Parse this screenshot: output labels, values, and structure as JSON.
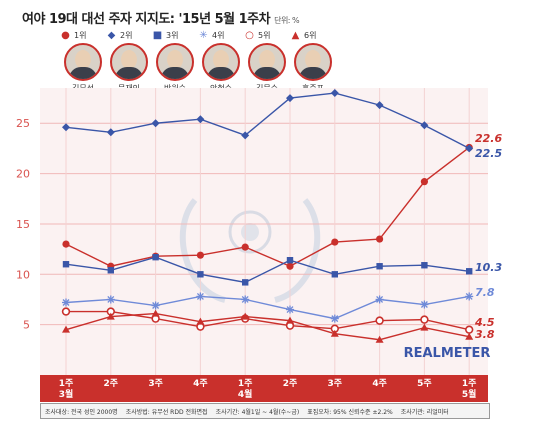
{
  "header": {
    "title": "여야 19대 대선 주자 지지도: '15년 5월 1주차",
    "unit": "단위: %"
  },
  "legend": [
    {
      "rank": "1위",
      "name": "김무성",
      "icon": "filled-circle-icon",
      "color": "#c9302c"
    },
    {
      "rank": "2위",
      "name": "문재인",
      "icon": "diamond-icon",
      "color": "#3a56a8"
    },
    {
      "rank": "3위",
      "name": "박원순",
      "icon": "square-icon",
      "color": "#3a56a8"
    },
    {
      "rank": "4위",
      "name": "안철수",
      "icon": "asterisk-icon",
      "color": "#6f8ad8"
    },
    {
      "rank": "5위",
      "name": "김문수",
      "icon": "open-circle-icon",
      "color": "#c9302c"
    },
    {
      "rank": "6위",
      "name": "홍준표",
      "icon": "triangle-icon",
      "color": "#c9302c"
    }
  ],
  "watermark": "REALMETER",
  "footer": {
    "items": [
      "조사대상: 전국 성인 2000명",
      "조사방법: 유무선 RDD 전화면접",
      "조사기간: 4월1일 ~ 4월(수~금)",
      "표집오차: 95% 신뢰수준 ±2.2%",
      "조사기관: 리얼미터"
    ]
  },
  "chart_data": {
    "type": "line",
    "categories": [
      "1주 3월",
      "2주",
      "3주",
      "4주",
      "1주 4월",
      "2주",
      "3주",
      "4주",
      "5주",
      "1주 5월"
    ],
    "category_lines": [
      [
        "1주",
        "3월"
      ],
      [
        "2주"
      ],
      [
        "3주"
      ],
      [
        "4주"
      ],
      [
        "1주",
        "4월"
      ],
      [
        "2주"
      ],
      [
        "3주"
      ],
      [
        "4주"
      ],
      [
        "5주"
      ],
      [
        "1주",
        "5월"
      ]
    ],
    "ylim": [
      0,
      28.5
    ],
    "yticks": [
      5,
      10,
      15,
      20,
      25
    ],
    "grid": true,
    "series": [
      {
        "name": "김무성",
        "marker": "filled-circle",
        "color": "#c9302c",
        "values": [
          13.0,
          10.8,
          11.8,
          11.9,
          12.7,
          10.8,
          13.2,
          13.5,
          19.2,
          22.6
        ],
        "end_label": "22.6"
      },
      {
        "name": "문재인",
        "marker": "diamond",
        "color": "#3a56a8",
        "values": [
          24.6,
          24.1,
          25.0,
          25.4,
          23.8,
          27.5,
          28.0,
          26.8,
          24.8,
          22.5
        ],
        "end_label": "22.5"
      },
      {
        "name": "박원순",
        "marker": "square",
        "color": "#3a56a8",
        "values": [
          11.0,
          10.4,
          11.7,
          10.0,
          9.2,
          11.4,
          10.0,
          10.8,
          10.9,
          10.3
        ],
        "end_label": "10.3"
      },
      {
        "name": "안철수",
        "marker": "asterisk",
        "color": "#6f8ad8",
        "values": [
          7.2,
          7.5,
          6.9,
          7.8,
          7.5,
          6.5,
          5.6,
          7.5,
          7.0,
          7.8
        ],
        "end_label": "7.8"
      },
      {
        "name": "김문수",
        "marker": "open-circle",
        "color": "#c9302c",
        "values": [
          6.3,
          6.3,
          5.6,
          4.8,
          5.6,
          4.9,
          4.6,
          5.4,
          5.5,
          4.5
        ],
        "end_label": "4.5"
      },
      {
        "name": "홍준표",
        "marker": "triangle",
        "color": "#c9302c",
        "values": [
          4.5,
          5.8,
          6.1,
          5.3,
          5.8,
          5.4,
          4.1,
          3.5,
          4.7,
          3.8
        ],
        "end_label": "3.8"
      }
    ]
  }
}
